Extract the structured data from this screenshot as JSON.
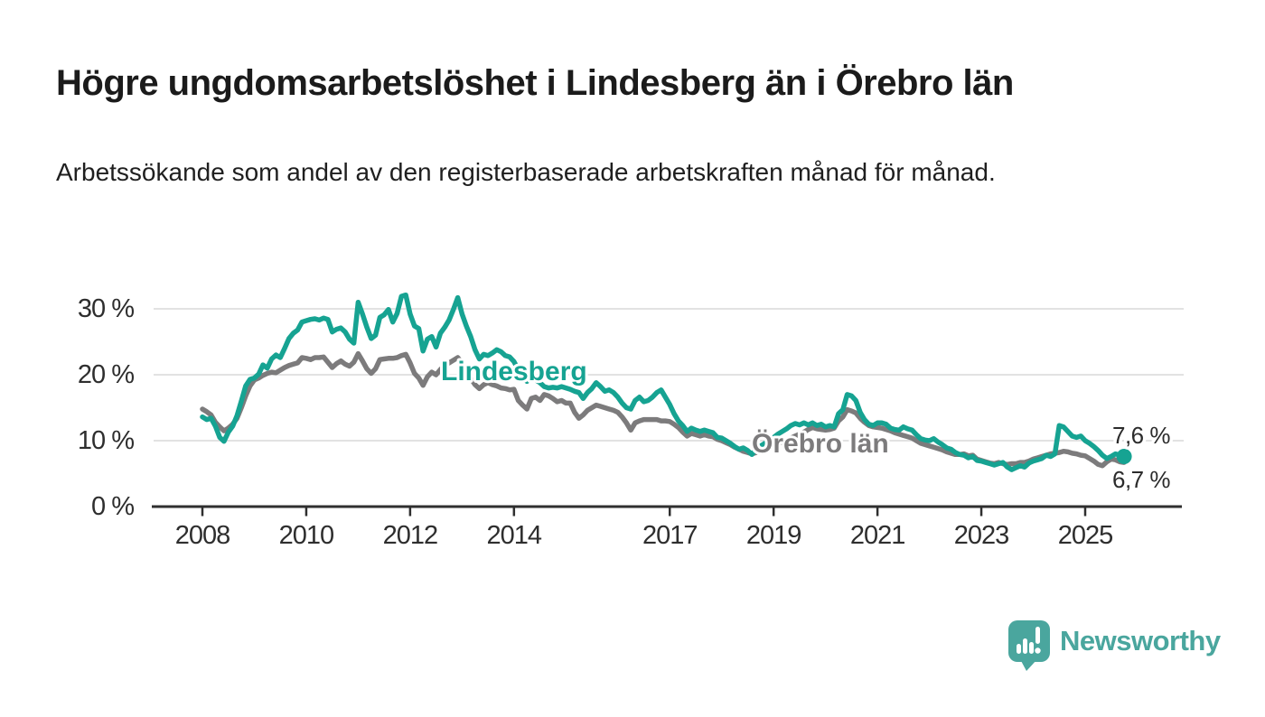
{
  "footer": {
    "brand": "Newsworthy"
  },
  "colors": {
    "teal": "#16a392",
    "gray": "#7c7b7c",
    "axis": "#2f2f2f",
    "grid": "#d9d9d9",
    "text": "#2e2e2e",
    "logo_teal": "#4aa69e",
    "background": "#ffffff"
  },
  "chart_data": {
    "type": "line",
    "title": "Högre ungdomsarbetslöshet i Lindesberg än i Örebro län",
    "subtitle": "Arbetssökande som andel av den registerbaserade arbetskraften månad för månad.",
    "x_unit": "month",
    "x_start": "2008-01",
    "x_end": "2025-10",
    "x_tick_years": [
      2008,
      2010,
      2012,
      2014,
      2017,
      2019,
      2021,
      2023,
      2025
    ],
    "x_tick_labels": [
      "2008",
      "2010",
      "2012",
      "2014",
      "2017",
      "2019",
      "2021",
      "2023",
      "2025"
    ],
    "y_tick_values": [
      0,
      10,
      20,
      30
    ],
    "y_tick_labels": [
      "0 %",
      "10 %",
      "20 %",
      "30 %"
    ],
    "ylim": [
      0,
      33
    ],
    "grid": "horizontal",
    "legend": "inline-labels",
    "series": [
      {
        "id": "lindesberg",
        "name": "Lindesberg",
        "color": "#16a392",
        "end_label": "7,6 %",
        "end_value": 7.6,
        "values": [
          13.6,
          13.2,
          13.4,
          12.2,
          10.5,
          9.9,
          11.3,
          12.2,
          13.8,
          16.0,
          18.3,
          19.3,
          19.5,
          20.1,
          21.5,
          21.0,
          22.4,
          23.0,
          22.6,
          24.0,
          25.5,
          26.3,
          26.8,
          28.0,
          28.2,
          28.4,
          28.5,
          28.3,
          28.6,
          28.4,
          26.5,
          26.9,
          27.1,
          26.5,
          25.4,
          24.8,
          31.0,
          29.2,
          27.2,
          25.5,
          26.0,
          28.7,
          29.1,
          29.9,
          28.0,
          29.3,
          31.9,
          32.1,
          29.2,
          27.4,
          27.0,
          23.6,
          25.4,
          25.8,
          24.2,
          26.3,
          27.2,
          28.3,
          29.9,
          31.7,
          29.2,
          27.4,
          25.8,
          23.8,
          22.4,
          23.1,
          22.9,
          23.3,
          23.8,
          23.5,
          22.9,
          22.7,
          22.0,
          20.8,
          19.6,
          19.0,
          19.5,
          19.2,
          18.8,
          18.2,
          18.0,
          18.1,
          18.0,
          18.2,
          18.0,
          17.8,
          17.5,
          17.3,
          16.4,
          17.3,
          17.9,
          18.8,
          18.2,
          17.5,
          17.7,
          17.3,
          16.6,
          15.7,
          15.0,
          14.8,
          16.1,
          16.6,
          15.9,
          16.1,
          16.6,
          17.3,
          17.7,
          16.6,
          15.5,
          14.1,
          13.0,
          12.3,
          11.4,
          11.9,
          11.6,
          11.4,
          11.6,
          11.4,
          11.2,
          10.5,
          10.4,
          10.0,
          9.6,
          9.1,
          8.7,
          8.9,
          8.5,
          7.9,
          8.8,
          9.2,
          9.6,
          10.0,
          10.5,
          11.0,
          11.4,
          11.8,
          12.3,
          12.6,
          12.4,
          12.7,
          12.4,
          12.7,
          12.3,
          12.5,
          12.1,
          12.3,
          12.1,
          14.1,
          14.7,
          17.0,
          16.8,
          16.1,
          14.3,
          13.2,
          12.5,
          12.3,
          12.7,
          12.7,
          12.5,
          11.9,
          11.7,
          11.6,
          12.1,
          11.8,
          11.6,
          10.9,
          10.3,
          10.1,
          10.0,
          10.3,
          9.8,
          9.4,
          8.9,
          8.7,
          8.2,
          7.9,
          7.8,
          7.4,
          7.6,
          7.0,
          6.9,
          6.7,
          6.5,
          6.3,
          6.5,
          6.7,
          6.0,
          5.6,
          5.9,
          6.2,
          6.0,
          6.6,
          6.9,
          7.1,
          7.3,
          7.8,
          7.6,
          8.0,
          12.3,
          12.1,
          11.4,
          10.7,
          10.5,
          10.7,
          10.0,
          9.6,
          9.1,
          8.5,
          7.8,
          7.3,
          7.6,
          8.0,
          7.8,
          7.6
        ]
      },
      {
        "id": "orebro-lan",
        "name": "Örebro län",
        "color": "#7c7b7c",
        "end_label": "6,7 %",
        "end_value": 6.7,
        "values": [
          14.8,
          14.4,
          13.9,
          12.8,
          12.1,
          11.5,
          11.9,
          12.5,
          13.4,
          15.0,
          16.8,
          18.3,
          19.2,
          19.5,
          19.9,
          20.2,
          20.4,
          20.3,
          20.7,
          21.1,
          21.4,
          21.6,
          21.8,
          22.6,
          22.5,
          22.3,
          22.6,
          22.6,
          22.7,
          21.9,
          21.1,
          21.7,
          22.1,
          21.6,
          21.3,
          21.9,
          23.2,
          22.1,
          20.9,
          20.2,
          20.9,
          22.3,
          22.4,
          22.5,
          22.5,
          22.6,
          22.9,
          23.1,
          21.8,
          20.2,
          19.5,
          18.4,
          19.7,
          20.4,
          20.0,
          20.8,
          21.4,
          21.8,
          22.2,
          22.6,
          21.8,
          20.5,
          19.5,
          18.5,
          17.9,
          18.5,
          18.8,
          18.5,
          18.3,
          18.0,
          17.9,
          17.7,
          17.8,
          16.1,
          15.4,
          14.8,
          16.4,
          16.6,
          16.1,
          17.0,
          16.8,
          16.4,
          15.9,
          16.1,
          15.7,
          15.7,
          14.3,
          13.4,
          13.9,
          14.6,
          15.0,
          15.4,
          15.2,
          15.0,
          14.8,
          14.6,
          14.3,
          13.6,
          12.7,
          11.6,
          12.7,
          13.0,
          13.2,
          13.2,
          13.2,
          13.2,
          13.0,
          13.0,
          12.9,
          12.5,
          12.0,
          11.3,
          10.7,
          11.1,
          10.9,
          10.7,
          10.9,
          10.7,
          10.6,
          10.2,
          10.0,
          9.7,
          9.4,
          9.0,
          8.7,
          8.4,
          8.2,
          8.0,
          8.2,
          8.4,
          8.7,
          9.0,
          9.3,
          9.5,
          9.8,
          10.1,
          10.4,
          10.7,
          11.0,
          11.3,
          11.7,
          12.0,
          11.8,
          11.7,
          11.6,
          11.7,
          11.9,
          13.0,
          13.6,
          14.7,
          14.5,
          14.2,
          13.4,
          12.8,
          12.3,
          12.1,
          12.0,
          11.9,
          11.7,
          11.5,
          11.2,
          11.0,
          10.8,
          10.6,
          10.4,
          10.0,
          9.6,
          9.4,
          9.2,
          9.0,
          8.8,
          8.6,
          8.3,
          8.1,
          7.9,
          7.9,
          8.0,
          7.7,
          7.8,
          7.2,
          7.0,
          6.8,
          6.6,
          6.5,
          6.7,
          6.5,
          6.4,
          6.5,
          6.5,
          6.7,
          6.7,
          6.9,
          7.2,
          7.4,
          7.6,
          7.8,
          8.0,
          8.1,
          8.2,
          8.4,
          8.3,
          8.1,
          8.0,
          7.8,
          7.7,
          7.3,
          6.9,
          6.4,
          6.2,
          6.8,
          7.2,
          7.1,
          6.8,
          6.7
        ]
      }
    ]
  }
}
